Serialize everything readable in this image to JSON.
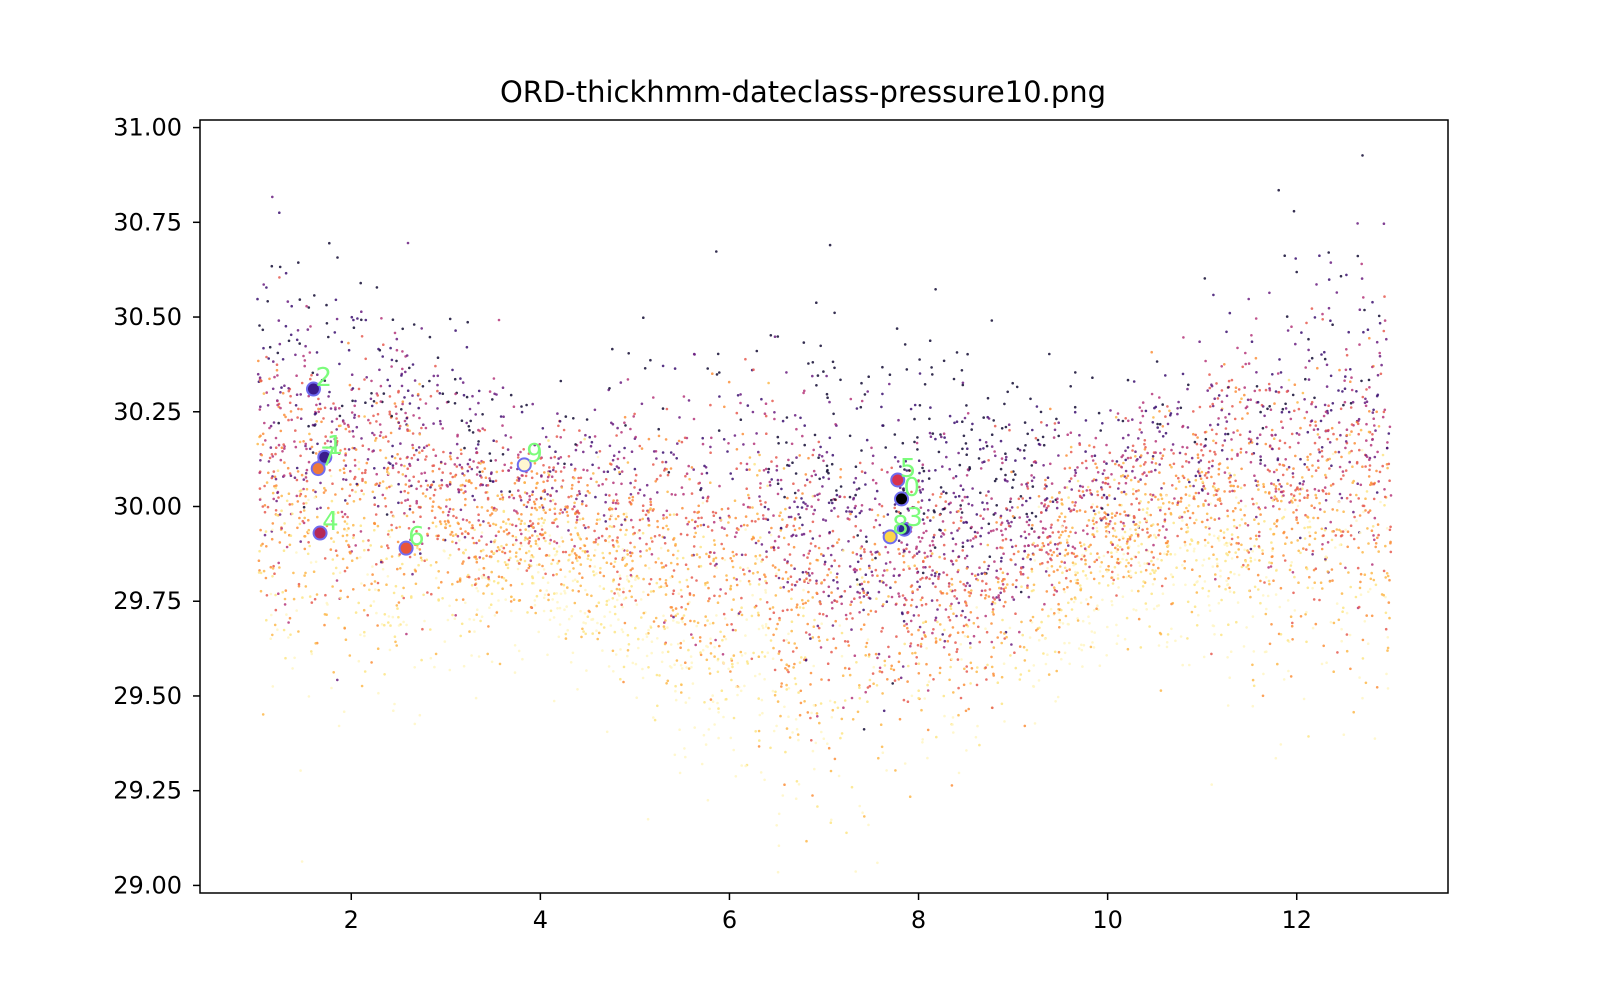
{
  "chart_data": {
    "type": "scatter",
    "title": "ORD-thickhmm-dateclass-pressure10.png",
    "xlabel": "",
    "ylabel": "",
    "xlim": [
      0.4,
      13.6
    ],
    "ylim": [
      28.98,
      31.02
    ],
    "x_ticks": [
      2,
      4,
      6,
      8,
      10,
      12
    ],
    "x_tick_labels": [
      "2",
      "4",
      "6",
      "8",
      "10",
      "12"
    ],
    "y_ticks": [
      29.0,
      29.25,
      29.5,
      29.75,
      30.0,
      30.25,
      30.5,
      30.75,
      31.0
    ],
    "y_tick_labels": [
      "29.00",
      "29.25",
      "29.50",
      "29.75",
      "30.00",
      "30.25",
      "30.50",
      "30.75",
      "31.00"
    ],
    "grid": false,
    "scatter": {
      "x_range": [
        1.0,
        13.0
      ],
      "point_count": 6000,
      "seed": 7,
      "palette": [
        "#120b33",
        "#3b0f70",
        "#6a1d80",
        "#b5367a",
        "#e65c51",
        "#fb8f3b",
        "#fdb84b",
        "#fde585",
        "#fff6c4"
      ]
    },
    "highlights": [
      {
        "label": "1",
        "x": 1.72,
        "y": 30.13,
        "color": "#3b1c8c"
      },
      {
        "label": "2",
        "x": 1.6,
        "y": 30.31,
        "color": "#3b1c8c"
      },
      {
        "label": "3",
        "x": 7.85,
        "y": 29.94,
        "color": "#2b2a8c"
      },
      {
        "label": "4",
        "x": 1.67,
        "y": 29.93,
        "color": "#b52a58"
      },
      {
        "label": "5",
        "x": 7.78,
        "y": 30.07,
        "color": "#d8324f"
      },
      {
        "label": "6",
        "x": 2.58,
        "y": 29.89,
        "color": "#e8553a"
      },
      {
        "label": "7",
        "x": 1.65,
        "y": 30.1,
        "color": "#f07a3a"
      },
      {
        "label": "8",
        "x": 7.7,
        "y": 29.92,
        "color": "#fbd54a"
      },
      {
        "label": "9",
        "x": 3.83,
        "y": 30.11,
        "color": "#fff7d0"
      },
      {
        "label": "0",
        "x": 7.82,
        "y": 30.02,
        "color": "#000000"
      }
    ]
  }
}
